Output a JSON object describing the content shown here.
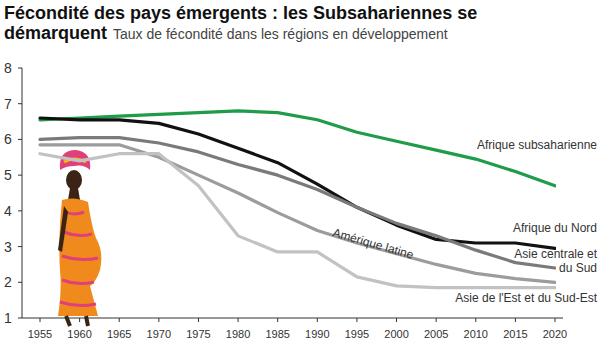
{
  "chart_data": {
    "type": "line",
    "title": "Fécondité des pays émergents : les Subsahariennes se démarquent",
    "subtitle": "Taux de fécondité dans les régions en développement",
    "x": [
      1955,
      1960,
      1965,
      1970,
      1975,
      1980,
      1985,
      1990,
      1995,
      2000,
      2005,
      2010,
      2015,
      2020
    ],
    "xlim": [
      1955,
      2020
    ],
    "xticks": [
      1955,
      1960,
      1965,
      1970,
      1975,
      1980,
      1985,
      1990,
      1995,
      2000,
      2005,
      2010,
      2015,
      2020
    ],
    "ylim": [
      1,
      8
    ],
    "yticks": [
      1,
      2,
      3,
      4,
      5,
      6,
      7,
      8
    ],
    "grid": false,
    "series": [
      {
        "name": "Afrique subsaharienne",
        "color": "#1f9b4a",
        "values": [
          6.55,
          6.6,
          6.65,
          6.7,
          6.75,
          6.8,
          6.75,
          6.55,
          6.2,
          5.95,
          5.7,
          5.45,
          5.1,
          4.7
        ]
      },
      {
        "name": "Afrique du Nord",
        "color": "#111111",
        "values": [
          6.6,
          6.55,
          6.55,
          6.45,
          6.15,
          5.75,
          5.35,
          4.75,
          4.1,
          3.6,
          3.2,
          3.1,
          3.1,
          2.95
        ]
      },
      {
        "name": "Asie centrale et du Sud",
        "color": "#7a7a7a",
        "values": [
          6.0,
          6.05,
          6.05,
          5.9,
          5.65,
          5.3,
          5.0,
          4.6,
          4.1,
          3.65,
          3.3,
          2.9,
          2.55,
          2.4
        ]
      },
      {
        "name": "Amérique latine",
        "color": "#9c9c9c",
        "values": [
          5.85,
          5.85,
          5.85,
          5.5,
          5.0,
          4.5,
          3.95,
          3.45,
          3.1,
          2.8,
          2.5,
          2.25,
          2.1,
          2.0
        ]
      },
      {
        "name": "Asie de l'Est et du Sud-Est",
        "color": "#c2c2c2",
        "values": [
          5.6,
          5.4,
          5.6,
          5.6,
          4.7,
          3.3,
          2.85,
          2.85,
          2.15,
          1.9,
          1.85,
          1.85,
          1.85,
          1.85
        ]
      }
    ]
  }
}
